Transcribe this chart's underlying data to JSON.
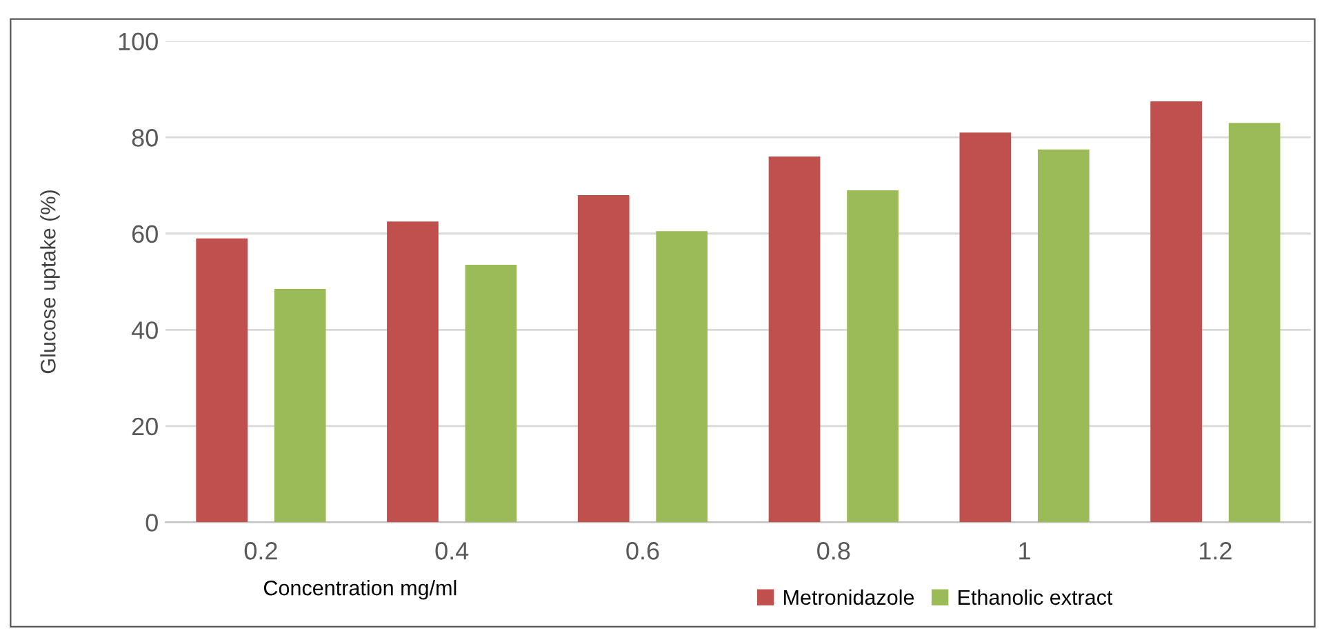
{
  "chart_data": {
    "type": "bar",
    "xlabel": "Concentration mg/ml",
    "ylabel": "Glucose uptake (%)",
    "categories": [
      "0.2",
      "0.4",
      "0.6",
      "0.8",
      "1",
      "1.2"
    ],
    "series": [
      {
        "name": "Metronidazole",
        "color": "#c0504d",
        "values": [
          59,
          62.5,
          68,
          76,
          81,
          87.5
        ]
      },
      {
        "name": "Ethanolic extract",
        "color": "#9bbb59",
        "values": [
          48.5,
          53.5,
          60.5,
          69,
          77.5,
          83
        ]
      }
    ],
    "ylim": [
      0,
      100
    ],
    "yticks": [
      0,
      20,
      40,
      60,
      80,
      100
    ],
    "grid": "y",
    "legend": "bottom"
  }
}
